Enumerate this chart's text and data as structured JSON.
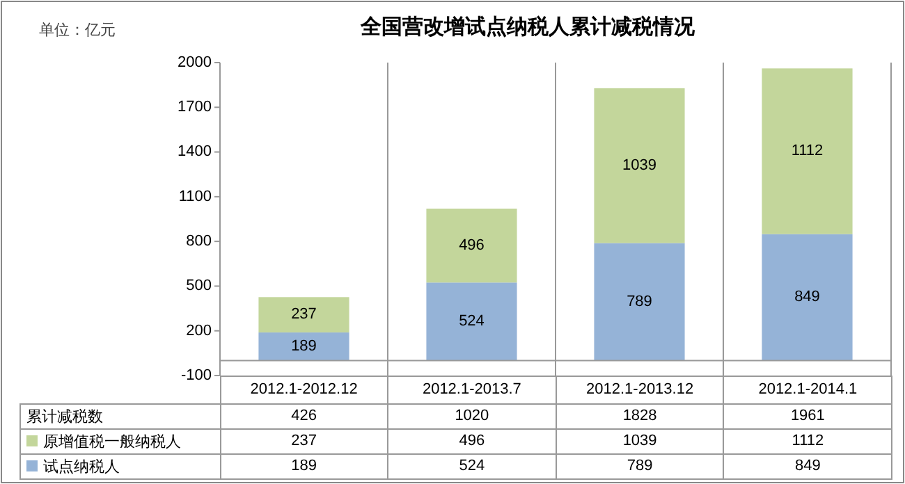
{
  "chart_data": {
    "type": "bar",
    "stacked": true,
    "title": "全国营改增试点纳税人累计减税情况",
    "ylabel": "单位：亿元",
    "categories": [
      "2012.1-2012.12",
      "2012.1-2013.7",
      "2012.1-2013.12",
      "2012.1-2014.1"
    ],
    "series": [
      {
        "name": "试点纳税人",
        "color": "#95b3d7",
        "values": [
          189,
          524,
          789,
          849
        ],
        "value_labels": [
          "189",
          "524",
          "789",
          "849"
        ]
      },
      {
        "name": "原增值税一般纳税人",
        "color": "#c3d69b",
        "values": [
          237,
          496,
          1039,
          1112
        ],
        "value_labels": [
          "237",
          "496",
          "1039",
          "1112"
        ]
      }
    ],
    "totals": [
      "426",
      "1020",
      "1828",
      "1961"
    ],
    "annotations": [
      "累计减税数",
      "237",
      "496",
      "1039",
      "1112",
      "189",
      "524",
      "789",
      "849"
    ],
    "ylim": [
      -100,
      2000
    ],
    "yticks": [
      -100,
      200,
      500,
      800,
      1100,
      1400,
      1700,
      2000
    ],
    "data_labels": true,
    "grid": false,
    "legend": "bottom"
  }
}
